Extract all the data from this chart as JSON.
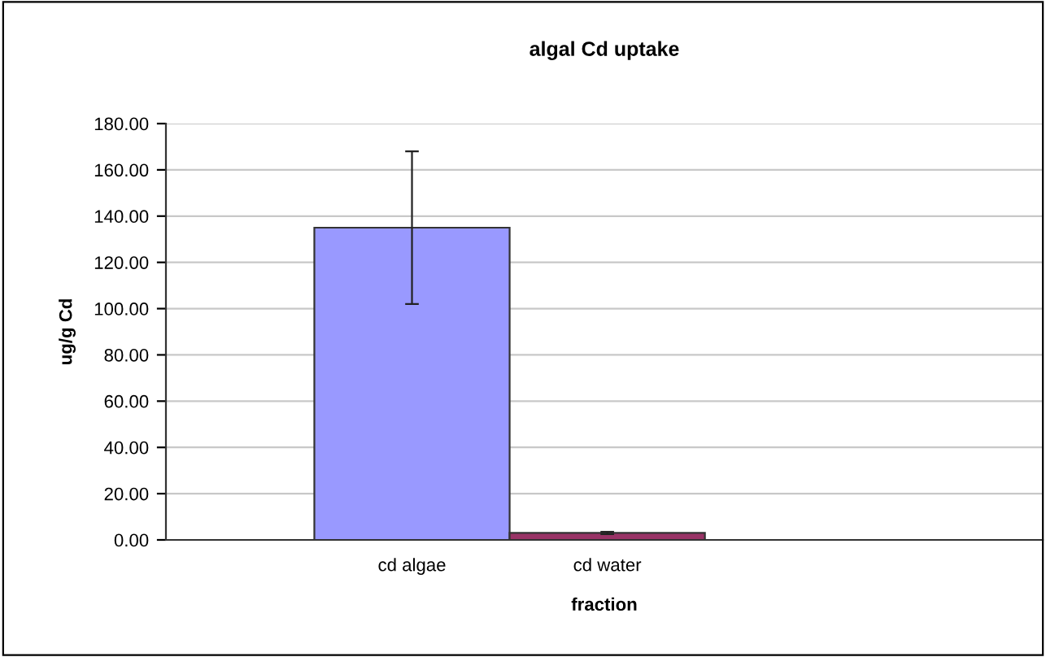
{
  "chart_data": {
    "type": "bar",
    "title": "algal Cd uptake",
    "xlabel": "fraction",
    "ylabel": "ug/g Cd",
    "categories": [
      "cd algae",
      "cd water"
    ],
    "values": [
      135,
      3
    ],
    "colors": [
      "#9999ff",
      "#993366"
    ],
    "errors": [
      [
        102,
        168
      ],
      [
        2.5,
        3.5
      ]
    ],
    "ylim": [
      0,
      180
    ],
    "yticks": [
      {
        "value": 0,
        "label": "0.00"
      },
      {
        "value": 20,
        "label": "20.00"
      },
      {
        "value": 40,
        "label": "40.00"
      },
      {
        "value": 60,
        "label": "60.00"
      },
      {
        "value": 80,
        "label": "80.00"
      },
      {
        "value": 100,
        "label": "100.00"
      },
      {
        "value": 120,
        "label": "120.00"
      },
      {
        "value": 140,
        "label": "140.00"
      },
      {
        "value": 160,
        "label": "160.00"
      },
      {
        "value": 180,
        "label": "180.00"
      }
    ],
    "grid": "y"
  }
}
